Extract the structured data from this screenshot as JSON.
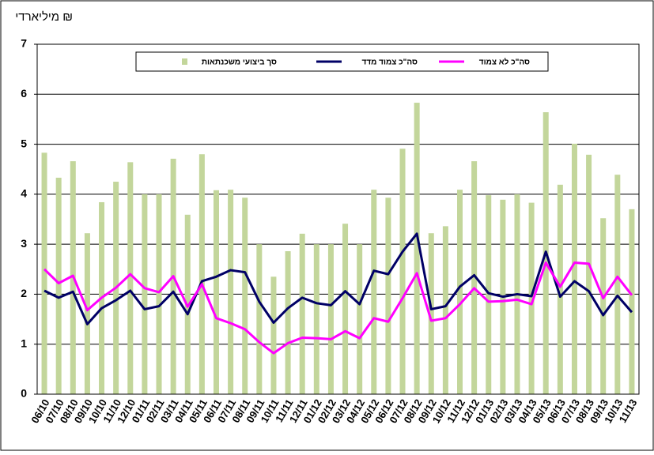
{
  "chart_data": {
    "type": "bar_line",
    "y_axis_label": "מיליארדי ₪",
    "categories": [
      "06/10",
      "07/10",
      "08/10",
      "09/10",
      "10/10",
      "11/10",
      "12/10",
      "01/11",
      "02/11",
      "03/11",
      "04/11",
      "05/11",
      "06/11",
      "07/11",
      "08/11",
      "09/11",
      "10/11",
      "11/11",
      "12/11",
      "01/12",
      "02/12",
      "03/12",
      "04/12",
      "05/12",
      "06/12",
      "07/12",
      "08/12",
      "09/12",
      "10/12",
      "11/12",
      "12/12",
      "01/13",
      "02/13",
      "03/13",
      "04/13",
      "05/13",
      "06/13",
      "07/13",
      "08/13",
      "09/13",
      "10/13",
      "11/13"
    ],
    "series": [
      {
        "name": "סך ביצועי משכנתאות",
        "kind": "bar",
        "color": "#c3d69b",
        "values": [
          4.83,
          4.33,
          4.66,
          3.22,
          3.84,
          4.25,
          4.64,
          4.0,
          4.0,
          4.71,
          3.59,
          4.8,
          4.08,
          4.09,
          3.93,
          3.0,
          2.35,
          2.86,
          3.21,
          3.0,
          3.0,
          3.41,
          3.0,
          4.09,
          3.93,
          4.91,
          5.83,
          3.22,
          3.36,
          4.09,
          4.66,
          3.98,
          3.89,
          4.0,
          3.83,
          5.64,
          4.19,
          5.01,
          4.79,
          3.52,
          4.39,
          3.7
        ]
      },
      {
        "name": "סה\"כ צמוד מדד",
        "kind": "line",
        "color": "#000066",
        "values": [
          2.07,
          1.93,
          2.05,
          1.4,
          1.72,
          1.88,
          2.07,
          1.7,
          1.76,
          2.05,
          1.6,
          2.26,
          2.35,
          2.48,
          2.44,
          1.85,
          1.43,
          1.72,
          1.93,
          1.82,
          1.78,
          2.06,
          1.8,
          2.47,
          2.4,
          2.85,
          3.21,
          1.7,
          1.76,
          2.15,
          2.38,
          2.02,
          1.95,
          2.0,
          1.96,
          2.85,
          1.95,
          2.26,
          2.06,
          1.58,
          1.97,
          1.64
        ]
      },
      {
        "name": "סה\"כ לא צמוד",
        "kind": "line",
        "color": "#ff00ff",
        "values": [
          2.5,
          2.22,
          2.37,
          1.68,
          1.93,
          2.13,
          2.4,
          2.12,
          2.04,
          2.36,
          1.75,
          2.2,
          1.52,
          1.42,
          1.3,
          1.04,
          0.82,
          1.02,
          1.13,
          1.12,
          1.1,
          1.26,
          1.12,
          1.52,
          1.45,
          1.92,
          2.42,
          1.47,
          1.52,
          1.8,
          2.12,
          1.85,
          1.86,
          1.89,
          1.8,
          2.63,
          2.15,
          2.63,
          2.61,
          1.92,
          2.35,
          1.98
        ]
      }
    ],
    "ylim": [
      0,
      7
    ],
    "yticks": [
      0,
      1,
      2,
      3,
      4,
      5,
      6,
      7
    ],
    "grid": true
  }
}
